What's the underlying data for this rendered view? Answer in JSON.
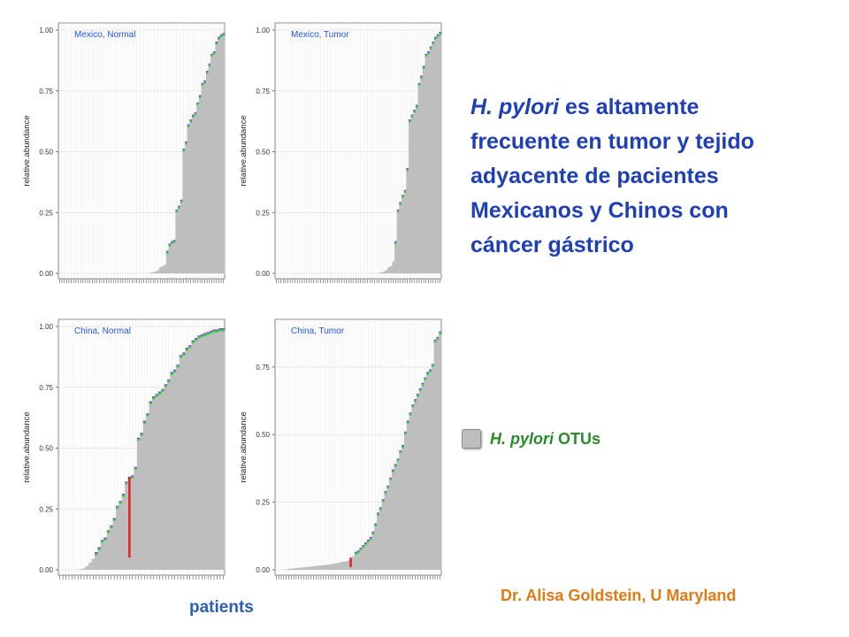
{
  "headline": {
    "em1": "H. pylori",
    "rest1": " es altamente frecuente en tumor y tejido adyacente de pacientes Mexicanos y Chinos con cáncer gástrico"
  },
  "legend": {
    "em": "H. pylori",
    "rest": " OTUs",
    "swatch_color": "#bebebe"
  },
  "credit": "Dr. Alisa Goldstein, U Maryland",
  "x_caption": "patients",
  "colors": {
    "bar": "#bebebe",
    "top_green": "#33d633",
    "top_purple": "#7a4fd6",
    "highlight": "#e31a1c",
    "title": "#2255ee"
  },
  "chart_data": [
    {
      "type": "bar",
      "title": "Mexico, Normal",
      "ylabel": "relative.abundance",
      "ylim": [
        0,
        1.0
      ],
      "yticks": [
        "0.00",
        "0.25",
        "0.50",
        "0.75",
        "1.00"
      ],
      "grid": true,
      "values": [
        0,
        0,
        0,
        0,
        0,
        0,
        0,
        0,
        0,
        0,
        0,
        0,
        0,
        0,
        0,
        0,
        0,
        0,
        0,
        0,
        0,
        0,
        0,
        0,
        0,
        0,
        0,
        0,
        0,
        0,
        0,
        0,
        0,
        0,
        0,
        0,
        0,
        0,
        0,
        0.003,
        0.005,
        0.008,
        0.012,
        0.025,
        0.03,
        0.035,
        0.08,
        0.11,
        0.12,
        0.125,
        0.25,
        0.265,
        0.29,
        0.5,
        0.53,
        0.6,
        0.62,
        0.64,
        0.65,
        0.69,
        0.72,
        0.77,
        0.78,
        0.82,
        0.85,
        0.89,
        0.9,
        0.94,
        0.96,
        0.97,
        0.975
      ]
    },
    {
      "type": "bar",
      "title": "Mexico, Tumor",
      "ylabel": "relative.abundance",
      "ylim": [
        0,
        1.0
      ],
      "yticks": [
        "0.00",
        "0.25",
        "0.50",
        "0.75",
        "1.00"
      ],
      "grid": true,
      "values": [
        0,
        0,
        0,
        0,
        0,
        0,
        0,
        0,
        0,
        0,
        0,
        0,
        0,
        0,
        0,
        0,
        0,
        0,
        0,
        0,
        0,
        0,
        0,
        0,
        0,
        0,
        0,
        0,
        0,
        0,
        0,
        0,
        0,
        0,
        0,
        0,
        0,
        0,
        0,
        0,
        0,
        0,
        0,
        0,
        0.002,
        0.004,
        0.008,
        0.012,
        0.025,
        0.03,
        0.05,
        0.12,
        0.25,
        0.28,
        0.31,
        0.33,
        0.42,
        0.62,
        0.64,
        0.66,
        0.68,
        0.77,
        0.8,
        0.84,
        0.89,
        0.9,
        0.92,
        0.94,
        0.96,
        0.97,
        0.98
      ]
    },
    {
      "type": "bar",
      "title": "China, Normal",
      "ylabel": "relative.abundance",
      "ylim": [
        0,
        1.0
      ],
      "yticks": [
        "0.00",
        "0.25",
        "0.50",
        "0.75",
        "1.00"
      ],
      "grid": true,
      "values": [
        0,
        0,
        0,
        0,
        0,
        0,
        0,
        0.003,
        0.006,
        0.015,
        0.03,
        0.045,
        0.06,
        0.08,
        0.11,
        0.12,
        0.15,
        0.17,
        0.2,
        0.25,
        0.27,
        0.3,
        0.35,
        0.37,
        0.375,
        0.41,
        0.53,
        0.55,
        0.6,
        0.63,
        0.68,
        0.7,
        0.71,
        0.72,
        0.73,
        0.75,
        0.77,
        0.8,
        0.81,
        0.83,
        0.87,
        0.88,
        0.9,
        0.91,
        0.93,
        0.94,
        0.95,
        0.955,
        0.96,
        0.965,
        0.97,
        0.975,
        0.975,
        0.98,
        0.98
      ],
      "highlight": {
        "index": 23,
        "from": 0.05,
        "to": 0.38
      }
    },
    {
      "type": "bar",
      "title": "China, Tumor",
      "ylabel": "relative.abundance",
      "ylim": [
        0,
        0.9
      ],
      "yticks": [
        "0.00",
        "0.25",
        "0.50",
        "0.75"
      ],
      "grid": true,
      "values": [
        0,
        0,
        0,
        0,
        0.002,
        0.003,
        0.004,
        0.005,
        0.006,
        0.007,
        0.008,
        0.009,
        0.01,
        0.011,
        0.012,
        0.013,
        0.014,
        0.015,
        0.016,
        0.017,
        0.018,
        0.019,
        0.02,
        0.022,
        0.024,
        0.026,
        0.028,
        0.03,
        0.03,
        0.035,
        0.04,
        0.05,
        0.055,
        0.06,
        0.07,
        0.08,
        0.09,
        0.1,
        0.11,
        0.13,
        0.16,
        0.2,
        0.22,
        0.25,
        0.28,
        0.3,
        0.33,
        0.36,
        0.38,
        0.4,
        0.43,
        0.45,
        0.5,
        0.54,
        0.57,
        0.6,
        0.62,
        0.64,
        0.66,
        0.68,
        0.7,
        0.72,
        0.73,
        0.75,
        0.84,
        0.85,
        0.87
      ],
      "highlight": {
        "index": 30,
        "from": 0.01,
        "to": 0.045
      }
    }
  ]
}
